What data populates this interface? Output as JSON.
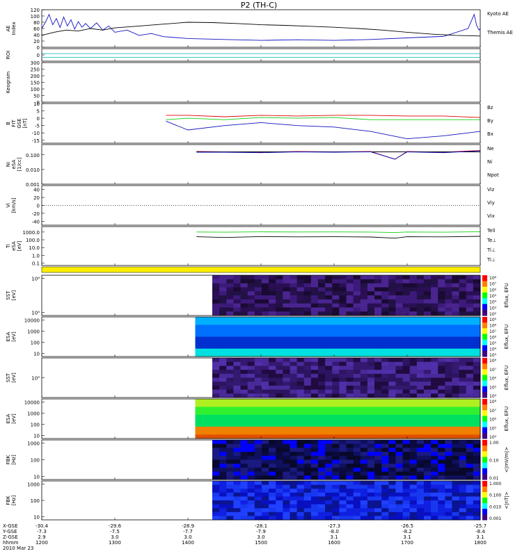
{
  "title": "P2 (TH-C)",
  "chart_data": [
    {
      "type": "line",
      "panel": "ae",
      "ylabel": "AE Index",
      "ylim": [
        0,
        120
      ],
      "yticks": [
        "120",
        "100",
        "80",
        "60",
        "40",
        "20",
        "0"
      ],
      "series": [
        {
          "name": "Kyoto AE",
          "color": "#1010c0",
          "x": [
            1200,
            1203,
            1206,
            1209,
            1212,
            1215,
            1218,
            1221,
            1224,
            1227,
            1230,
            1233,
            1236,
            1240,
            1245,
            1250,
            1255,
            1300,
            1310,
            1320,
            1330,
            1340,
            1400,
            1430,
            1500,
            1530,
            1600,
            1630,
            1700,
            1730,
            1750,
            1755,
            1757,
            1759,
            1800
          ],
          "y": [
            60,
            80,
            105,
            72,
            92,
            63,
            97,
            68,
            88,
            58,
            82,
            64,
            76,
            60,
            78,
            55,
            68,
            48,
            55,
            38,
            44,
            34,
            28,
            25,
            22,
            24,
            22,
            25,
            30,
            35,
            60,
            105,
            70,
            55,
            60
          ]
        },
        {
          "name": "Themis AE",
          "color": "#000000",
          "x": [
            1200,
            1210,
            1220,
            1230,
            1240,
            1250,
            1300,
            1320,
            1340,
            1400,
            1420,
            1440,
            1500,
            1520,
            1540,
            1600,
            1620,
            1640,
            1700,
            1720,
            1740,
            1800
          ],
          "y": [
            38,
            48,
            55,
            52,
            60,
            55,
            62,
            68,
            74,
            80,
            79,
            76,
            72,
            70,
            67,
            64,
            60,
            55,
            48,
            42,
            38,
            36
          ]
        }
      ]
    },
    {
      "type": "line",
      "panel": "roi",
      "ylabel": "ROI",
      "yticks": [
        "0"
      ],
      "series": [
        {
          "name": "",
          "color": "#20c0c0",
          "x": [
            1200,
            1800
          ],
          "y": [
            0.3,
            0.3
          ]
        },
        {
          "name": "",
          "color": "#20c0c0",
          "x": [
            1200,
            1800
          ],
          "y": [
            0.6,
            0.6
          ]
        }
      ]
    },
    {
      "type": "table",
      "panel": "keogram",
      "ylabel": "Keogram",
      "ylim": [
        0,
        300
      ],
      "yticks": [
        "300",
        "250",
        "200",
        "150",
        "100",
        "50",
        "0"
      ]
    },
    {
      "type": "line",
      "panel": "bfield",
      "ylabel": "B FIT GSE [nT]",
      "ylim": [
        -17,
        10
      ],
      "yticks": [
        "10",
        "5",
        "0",
        "-5",
        "-10",
        "-15"
      ],
      "series": [
        {
          "name": "Bz",
          "color": "#e00000",
          "x": [
            1342,
            1400,
            1430,
            1500,
            1530,
            1600,
            1630,
            1700,
            1730,
            1800
          ],
          "y": [
            2,
            2,
            1,
            2,
            1.5,
            2,
            2,
            1.5,
            1.5,
            0.5
          ]
        },
        {
          "name": "By",
          "color": "#10d010",
          "x": [
            1342,
            1400,
            1430,
            1500,
            1530,
            1600,
            1630,
            1700,
            1730,
            1800
          ],
          "y": [
            -1,
            0,
            -1,
            0.5,
            0,
            0.5,
            -1,
            -1,
            -1,
            -1
          ]
        },
        {
          "name": "Bx",
          "color": "#1010c0",
          "x": [
            1342,
            1400,
            1430,
            1500,
            1530,
            1600,
            1630,
            1700,
            1730,
            1800
          ],
          "y": [
            -2,
            -8,
            -5,
            -3,
            -5,
            -6,
            -9,
            -14,
            -12,
            -9
          ]
        }
      ]
    },
    {
      "type": "line",
      "panel": "density",
      "ylabel": "Ni eSA [1/cc]",
      "yscale": "log",
      "ylim": [
        0.001,
        0.5
      ],
      "yticks": [
        "0.100",
        "0.010",
        "0.001"
      ],
      "series": [
        {
          "name": "Ne",
          "color": "#e00000",
          "x": [
            1407,
            1430,
            1500,
            1530,
            1600,
            1630,
            1650,
            1700,
            1730,
            1800
          ],
          "y": [
            0.17,
            0.16,
            0.15,
            0.17,
            0.16,
            0.17,
            0.05,
            0.17,
            0.15,
            0.2
          ]
        },
        {
          "name": "Ni",
          "color": "#000000",
          "x": [
            1407,
            1800
          ],
          "y": [
            0.16,
            0.16
          ]
        },
        {
          "name": "Npot",
          "color": "#1010c0",
          "x": [
            1407,
            1430,
            1500,
            1530,
            1600,
            1630,
            1650,
            1700,
            1730,
            1800
          ],
          "y": [
            0.15,
            0.15,
            0.14,
            0.16,
            0.15,
            0.16,
            0.05,
            0.16,
            0.14,
            0.19
          ]
        }
      ]
    },
    {
      "type": "line",
      "panel": "velocity",
      "ylabel": "Vi [km/s]",
      "ylim": [
        -50,
        50
      ],
      "yticks": [
        "40",
        "20",
        "0",
        "-20",
        "-40"
      ],
      "series": [
        {
          "name": "Viz",
          "color": "#e00000",
          "x": [],
          "y": []
        },
        {
          "name": "Viy",
          "color": "#10d010",
          "x": [],
          "y": []
        },
        {
          "name": "Vix",
          "color": "#1010c0",
          "x": [],
          "y": []
        }
      ]
    },
    {
      "type": "line",
      "panel": "temperature",
      "ylabel": "Ti eSA [eV]",
      "yscale": "log",
      "ylim": [
        0.05,
        5000
      ],
      "yticks": [
        "1000.0",
        "100.0",
        "10.0",
        "1.0",
        "0.1"
      ],
      "series": [
        {
          "name": "Tell",
          "color": "#000000",
          "x": [
            1407,
            1430,
            1500,
            1530,
            1600,
            1630,
            1650,
            1700,
            1730,
            1800
          ],
          "y": [
            250,
            200,
            260,
            240,
            250,
            230,
            160,
            250,
            240,
            280
          ]
        },
        {
          "name": "Te⊥",
          "color": "#e00000",
          "x": [],
          "y": []
        },
        {
          "name": "Ti⊥",
          "color": "#10d010",
          "x": [
            1407,
            1430,
            1500,
            1530,
            1600,
            1630,
            1650,
            1700,
            1730,
            1800
          ],
          "y": [
            1000,
            950,
            1050,
            1000,
            1020,
            980,
            850,
            1000,
            950,
            1100
          ]
        },
        {
          "name": "Ti⊥",
          "color": "#1010c0",
          "x": [],
          "y": []
        }
      ]
    },
    {
      "type": "heatmap",
      "panel": "sst_e",
      "ylabel": "SST [eV]",
      "yscale": "log",
      "yticks": [
        "10⁶",
        "10⁵"
      ],
      "xrange": [
        1420,
        1800
      ],
      "zlabel": "Eflux, EFU",
      "zticks": [
        "10⁸",
        "10⁷",
        "10⁶",
        "10⁵",
        "10⁴",
        "10³",
        "10²"
      ]
    },
    {
      "type": "heatmap",
      "panel": "esa_e",
      "ylabel": "ESA [eV]",
      "yscale": "log",
      "yticks": [
        "10000",
        "1000",
        "100",
        "10"
      ],
      "xrange": [
        1406,
        1800
      ],
      "zlabel": "Eflux, EFU",
      "zticks": [
        "10⁹",
        "10⁸",
        "10⁷",
        "10⁶",
        "10⁵",
        "10⁴",
        "10³"
      ]
    },
    {
      "type": "heatmap",
      "panel": "sst_i",
      "ylabel": "SST [eV]",
      "yscale": "log",
      "yticks": [
        "10⁵"
      ],
      "xrange": [
        1420,
        1800
      ],
      "zlabel": "Eflux, EFU",
      "zticks": [
        "10⁸",
        "10⁷",
        "10⁶",
        "10⁵",
        "10⁴"
      ]
    },
    {
      "type": "heatmap",
      "panel": "esa_i",
      "ylabel": "ESA [eV]",
      "yscale": "log",
      "yticks": [
        "10000",
        "1000",
        "100",
        "10"
      ],
      "xrange": [
        1406,
        1800
      ],
      "zlabel": "Eflux, EFU",
      "zticks": [
        "10⁸",
        "10⁷",
        "10⁶",
        "10⁵",
        "10⁴"
      ]
    },
    {
      "type": "heatmap",
      "panel": "fbk_e",
      "ylabel": "FBK [Hz]",
      "yscale": "log",
      "yticks": [
        "1000",
        "100",
        "10"
      ],
      "xrange": [
        1420,
        1800
      ],
      "zlabel": "<|mV/m|>",
      "zticks": [
        "1.00",
        "0.10",
        "0.01"
      ]
    },
    {
      "type": "heatmap",
      "panel": "fbk_b",
      "ylabel": "FBK [Hz]",
      "yscale": "log",
      "yticks": [
        "1000",
        "100",
        "10"
      ],
      "xrange": [
        1420,
        1800
      ],
      "zlabel": "<|nT|>",
      "zticks": [
        "1.000",
        "0.100",
        "0.010",
        "0.001"
      ]
    }
  ],
  "xaxis": {
    "row_labels": [
      "X-GSE",
      "Y-GSE",
      "Z-GSE",
      "hhmm",
      "2010 Mar 23"
    ],
    "ticks": [
      {
        "x": 1200,
        "vals": [
          "-30.4",
          "-7.3",
          "2.9",
          "1200"
        ]
      },
      {
        "x": 1300,
        "vals": [
          "-29.6",
          "-7.5",
          "3.0",
          "1300"
        ]
      },
      {
        "x": 1400,
        "vals": [
          "-28.9",
          "-7.7",
          "3.0",
          "1400"
        ]
      },
      {
        "x": 1500,
        "vals": [
          "-28.1",
          "-7.9",
          "3.0",
          "1500"
        ]
      },
      {
        "x": 1600,
        "vals": [
          "-27.3",
          "-8.0",
          "3.1",
          "1600"
        ]
      },
      {
        "x": 1700,
        "vals": [
          "-26.5",
          "-8.2",
          "3.1",
          "1700"
        ]
      },
      {
        "x": 1800,
        "vals": [
          "-25.7",
          "-8.4",
          "3.1",
          "1800"
        ]
      }
    ]
  }
}
